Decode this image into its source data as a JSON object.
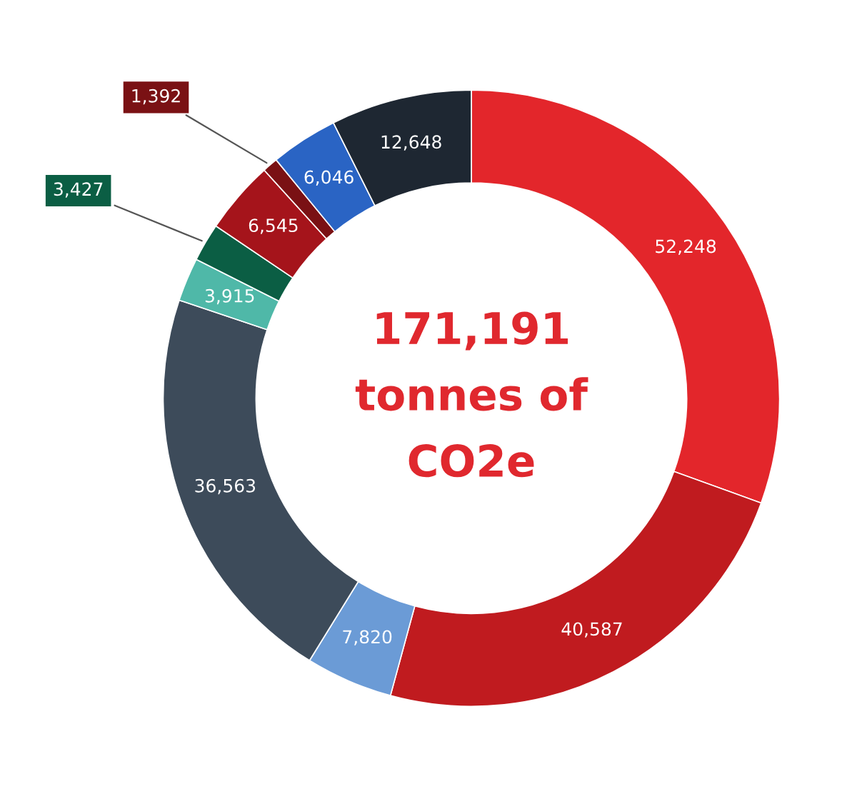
{
  "chart_data": {
    "type": "donut",
    "categories": [
      null,
      null,
      null,
      null,
      null,
      null,
      null,
      null,
      null,
      null
    ],
    "values": [
      52248,
      40587,
      7820,
      36563,
      3915,
      3427,
      6545,
      1392,
      6046,
      12648
    ],
    "colors": [
      "#e3262b",
      "#c01b1f",
      "#6b9bd6",
      "#3d4b5a",
      "#4fb8a8",
      "#0b5e44",
      "#a5141b",
      "#7a1114",
      "#2a64c4",
      "#1e2732"
    ],
    "value_labels": [
      "52,248",
      "40,587",
      "7,820",
      "36,563",
      "3,915",
      "3,427",
      "6,545",
      "1,392",
      "6,046",
      "12,648"
    ],
    "annotations": [
      "171,191",
      "tonnes of",
      "CO2e"
    ]
  }
}
